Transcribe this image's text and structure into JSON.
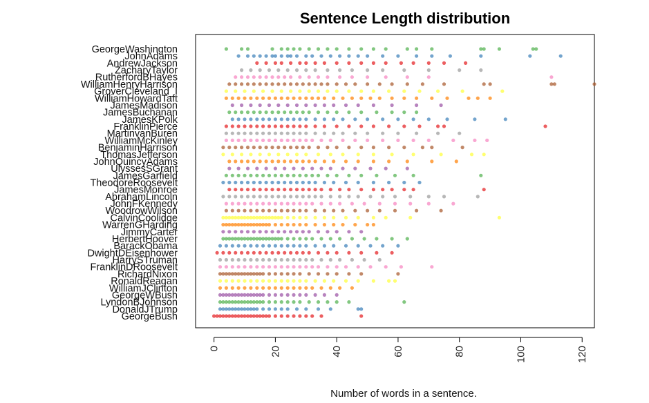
{
  "chart_data": {
    "type": "scatter",
    "title": "Sentence Length distribution",
    "xlabel": "Number of words in a sentence.",
    "ylabel": "",
    "xlim": [
      -6,
      124
    ],
    "xticks": [
      0,
      20,
      40,
      60,
      80,
      100,
      120
    ],
    "grid": false,
    "palette": [
      "#e41a1c",
      "#377eb8",
      "#4daf4a",
      "#984ea3",
      "#ff7f00",
      "#ffff33",
      "#a65628",
      "#f781bf",
      "#999999"
    ],
    "series": [
      {
        "name": "GeorgeWashington",
        "color": "#4daf4a",
        "values": [
          4,
          9,
          11,
          19,
          22,
          24,
          26,
          28,
          31,
          34,
          37,
          40,
          44,
          48,
          52,
          56,
          63,
          66,
          71,
          87,
          88,
          93,
          104,
          105
        ]
      },
      {
        "name": "JohnAdams",
        "color": "#377eb8",
        "values": [
          8,
          11,
          13,
          15,
          17,
          19,
          20,
          22,
          24,
          25,
          27,
          30,
          32,
          35,
          38,
          41,
          44,
          47,
          50,
          55,
          60,
          66,
          71,
          77,
          87,
          103,
          113
        ]
      },
      {
        "name": "AndrewJackson",
        "color": "#e41a1c",
        "values": [
          14,
          17,
          20,
          22,
          25,
          28,
          30,
          33,
          36,
          40,
          44,
          48,
          52,
          56,
          61,
          65,
          70,
          75,
          82
        ]
      },
      {
        "name": "ZacharyTaylor",
        "color": "#999999",
        "values": [
          9,
          12,
          15,
          18,
          21,
          24,
          27,
          30,
          33,
          37,
          41,
          45,
          50,
          55,
          62,
          70,
          80,
          87
        ]
      },
      {
        "name": "RutherfordBHayes",
        "color": "#f781bf",
        "values": [
          7,
          9,
          11,
          13,
          15,
          17,
          19,
          21,
          23,
          25,
          28,
          31,
          34,
          37,
          41,
          45,
          50,
          56,
          63,
          70,
          110
        ]
      },
      {
        "name": "WilliamHenryHarrison",
        "color": "#a65628",
        "values": [
          5,
          7,
          9,
          11,
          13,
          15,
          17,
          19,
          21,
          23,
          25,
          27,
          29,
          31,
          33,
          35,
          37,
          40,
          43,
          46,
          50,
          54,
          58,
          63,
          68,
          75,
          88,
          90,
          110,
          111,
          124
        ]
      },
      {
        "name": "GroverCleveland_I",
        "color": "#ffff33",
        "values": [
          4,
          7,
          10,
          13,
          16,
          19,
          22,
          25,
          28,
          31,
          34,
          37,
          40,
          44,
          48,
          52,
          57,
          62,
          67,
          73,
          81,
          94
        ]
      },
      {
        "name": "WilliamHowardTaft",
        "color": "#ff7f00",
        "values": [
          4,
          6,
          8,
          10,
          12,
          14,
          16,
          18,
          20,
          22,
          24,
          26,
          28,
          30,
          32,
          34,
          36,
          39,
          42,
          45,
          48,
          51,
          54,
          58,
          62,
          66,
          71,
          76,
          83,
          86,
          90
        ]
      },
      {
        "name": "JamesMadison",
        "color": "#984ea3",
        "values": [
          6,
          9,
          12,
          15,
          18,
          21,
          24,
          27,
          30,
          33,
          36,
          39,
          43,
          47,
          52,
          58,
          66,
          74
        ]
      },
      {
        "name": "JamesBuchanan",
        "color": "#4daf4a",
        "values": [
          5,
          7,
          9,
          11,
          13,
          15,
          17,
          19,
          21,
          23,
          25,
          27,
          29,
          31,
          34,
          37,
          40,
          44,
          48,
          53,
          58,
          62,
          66
        ]
      },
      {
        "name": "JamesKPolk",
        "color": "#377eb8",
        "values": [
          6,
          8,
          10,
          12,
          14,
          16,
          18,
          20,
          22,
          24,
          26,
          28,
          30,
          33,
          36,
          39,
          42,
          46,
          50,
          55,
          60,
          65,
          70,
          76,
          85,
          95
        ]
      },
      {
        "name": "FranklinPierce",
        "color": "#e41a1c",
        "values": [
          4,
          6,
          8,
          10,
          12,
          14,
          16,
          18,
          20,
          22,
          24,
          26,
          28,
          30,
          33,
          36,
          40,
          44,
          48,
          52,
          57,
          62,
          67,
          73,
          75,
          108
        ]
      },
      {
        "name": "MartinvanBuren",
        "color": "#999999",
        "values": [
          4,
          6,
          8,
          10,
          12,
          14,
          16,
          18,
          20,
          22,
          24,
          26,
          28,
          30,
          33,
          36,
          39,
          42,
          46,
          50,
          55,
          60,
          66,
          73,
          80
        ]
      },
      {
        "name": "WilliamMcKinley",
        "color": "#f781bf",
        "values": [
          4,
          6,
          8,
          10,
          12,
          14,
          16,
          18,
          20,
          22,
          24,
          26,
          28,
          30,
          32,
          35,
          38,
          42,
          46,
          50,
          55,
          60,
          65,
          70,
          78,
          85,
          89
        ]
      },
      {
        "name": "BenjaminHarrison",
        "color": "#a65628",
        "values": [
          3,
          5,
          7,
          9,
          11,
          13,
          15,
          17,
          19,
          21,
          23,
          25,
          27,
          29,
          31,
          34,
          37,
          40,
          44,
          48,
          52,
          57,
          62,
          68,
          71,
          81
        ]
      },
      {
        "name": "ThomasJefferson",
        "color": "#ffff33",
        "values": [
          3,
          6,
          9,
          12,
          15,
          18,
          21,
          24,
          27,
          30,
          34,
          38,
          42,
          47,
          52,
          58,
          65,
          74,
          84,
          88
        ]
      },
      {
        "name": "JohnQuincyAdams",
        "color": "#ff7f00",
        "values": [
          5,
          7,
          9,
          11,
          13,
          15,
          17,
          19,
          21,
          23,
          25,
          27,
          29,
          31,
          33,
          36,
          39,
          43,
          47,
          52,
          57,
          63,
          71,
          79
        ]
      },
      {
        "name": "UlyssesSGrant",
        "color": "#984ea3",
        "values": [
          5,
          8,
          11,
          14,
          17,
          20,
          23,
          26,
          29,
          32,
          35,
          38,
          42,
          46,
          51,
          56,
          63
        ]
      },
      {
        "name": "JamesGarfield",
        "color": "#4daf4a",
        "values": [
          4,
          6,
          8,
          10,
          12,
          14,
          16,
          18,
          20,
          22,
          24,
          26,
          28,
          30,
          32,
          34,
          37,
          40,
          44,
          48,
          53,
          59,
          65,
          87
        ]
      },
      {
        "name": "TheodoreRoosevelt",
        "color": "#377eb8",
        "values": [
          3,
          5,
          7,
          9,
          11,
          13,
          15,
          17,
          19,
          21,
          23,
          25,
          27,
          29,
          31,
          33,
          36,
          39,
          43,
          47,
          52,
          57,
          62,
          67
        ]
      },
      {
        "name": "JamesMonroe",
        "color": "#e41a1c",
        "values": [
          5,
          7,
          9,
          11,
          13,
          15,
          17,
          19,
          21,
          23,
          25,
          27,
          29,
          31,
          33,
          35,
          38,
          41,
          44,
          48,
          52,
          55,
          58,
          62,
          65,
          88
        ]
      },
      {
        "name": "AbrahamLincoln",
        "color": "#999999",
        "values": [
          3,
          5,
          7,
          9,
          11,
          13,
          15,
          17,
          19,
          21,
          23,
          25,
          27,
          29,
          31,
          33,
          35,
          38,
          41,
          44,
          47,
          51,
          55,
          59,
          64,
          70,
          75,
          86
        ]
      },
      {
        "name": "JohnFKennedy",
        "color": "#f781bf",
        "values": [
          4,
          6,
          8,
          10,
          12,
          14,
          16,
          18,
          20,
          22,
          24,
          26,
          28,
          30,
          32,
          35,
          38,
          41,
          45,
          49,
          54,
          59,
          64,
          70,
          78
        ]
      },
      {
        "name": "WoodrowWilson",
        "color": "#a65628",
        "values": [
          4,
          6,
          8,
          10,
          12,
          14,
          16,
          18,
          20,
          22,
          24,
          26,
          28,
          30,
          33,
          36,
          39,
          42,
          46,
          50,
          54,
          59,
          66,
          74
        ]
      },
      {
        "name": "CalvinCoolidge",
        "color": "#ffff33",
        "values": [
          3,
          4,
          5,
          6,
          7,
          8,
          9,
          10,
          11,
          12,
          13,
          14,
          15,
          16,
          17,
          18,
          19,
          20,
          21,
          22,
          24,
          26,
          28,
          30,
          33,
          36,
          39,
          43,
          47,
          52,
          56,
          64,
          93
        ]
      },
      {
        "name": "WarrenGHarding",
        "color": "#ff7f00",
        "values": [
          3,
          4,
          5,
          6,
          7,
          8,
          9,
          10,
          11,
          12,
          13,
          14,
          15,
          16,
          17,
          18,
          20,
          22,
          24,
          26,
          28,
          30,
          33,
          36,
          39,
          42,
          46,
          50,
          52
        ]
      },
      {
        "name": "JimmyCarter",
        "color": "#984ea3",
        "values": [
          3,
          5,
          7,
          9,
          11,
          13,
          15,
          17,
          19,
          21,
          23,
          25,
          27,
          29,
          31,
          34,
          37,
          40,
          44,
          48
        ]
      },
      {
        "name": "HerbertHoover",
        "color": "#4daf4a",
        "values": [
          3,
          4,
          5,
          6,
          7,
          8,
          9,
          10,
          11,
          12,
          13,
          14,
          15,
          16,
          17,
          18,
          19,
          20,
          21,
          22,
          24,
          26,
          28,
          30,
          32,
          35,
          38,
          41,
          45,
          49,
          53,
          58,
          63
        ]
      },
      {
        "name": "BarackObama",
        "color": "#377eb8",
        "values": [
          2,
          4,
          6,
          8,
          10,
          12,
          14,
          16,
          18,
          20,
          22,
          24,
          26,
          28,
          30,
          33,
          36,
          39,
          43,
          47,
          51,
          55,
          60
        ]
      },
      {
        "name": "DwightDEisenhower",
        "color": "#e41a1c",
        "values": [
          1,
          3,
          5,
          7,
          9,
          11,
          13,
          15,
          17,
          19,
          21,
          23,
          25,
          27,
          29,
          31,
          34,
          37,
          40,
          44,
          48,
          53,
          58
        ]
      },
      {
        "name": "HarrySTruman",
        "color": "#999999",
        "values": [
          2,
          4,
          6,
          8,
          10,
          12,
          14,
          16,
          18,
          20,
          22,
          24,
          26,
          28,
          30,
          32,
          35,
          38,
          41,
          45,
          49,
          54
        ]
      },
      {
        "name": "FranklinDRoosevelt",
        "color": "#f781bf",
        "values": [
          2,
          4,
          6,
          8,
          10,
          12,
          14,
          16,
          18,
          20,
          22,
          24,
          26,
          28,
          30,
          32,
          34,
          37,
          40,
          43,
          47,
          51,
          56,
          61,
          71
        ]
      },
      {
        "name": "RichardNixon",
        "color": "#a65628",
        "values": [
          2,
          3,
          4,
          5,
          6,
          7,
          8,
          9,
          10,
          11,
          12,
          13,
          14,
          15,
          16,
          18,
          20,
          22,
          24,
          26,
          28,
          31,
          34,
          37,
          40,
          44,
          48,
          60
        ]
      },
      {
        "name": "RonaldReagan",
        "color": "#ffff33",
        "values": [
          2,
          4,
          6,
          8,
          10,
          12,
          14,
          16,
          18,
          20,
          22,
          24,
          26,
          28,
          30,
          33,
          36,
          39,
          43,
          47,
          52,
          57,
          59
        ]
      },
      {
        "name": "WilliamJClinton",
        "color": "#ff7f00",
        "values": [
          2,
          4,
          6,
          8,
          10,
          12,
          14,
          16,
          18,
          20,
          22,
          24,
          26,
          28,
          30,
          32,
          35,
          38,
          41,
          45
        ]
      },
      {
        "name": "GeorgeWBush",
        "color": "#984ea3",
        "values": [
          2,
          3,
          4,
          5,
          6,
          7,
          8,
          9,
          10,
          11,
          12,
          13,
          14,
          15,
          16,
          18,
          20,
          22,
          24,
          26,
          28,
          30,
          33,
          36,
          40
        ]
      },
      {
        "name": "LyndonBJohnson",
        "color": "#4daf4a",
        "values": [
          2,
          3,
          4,
          5,
          6,
          7,
          8,
          9,
          10,
          11,
          12,
          13,
          14,
          15,
          16,
          18,
          20,
          22,
          24,
          26,
          28,
          31,
          34,
          37,
          40,
          44,
          62
        ]
      },
      {
        "name": "DonaldJTrump",
        "color": "#377eb8",
        "values": [
          2,
          3,
          4,
          5,
          6,
          7,
          8,
          9,
          10,
          11,
          12,
          13,
          14,
          16,
          18,
          20,
          22,
          24,
          27,
          30,
          34,
          38,
          47,
          48
        ]
      },
      {
        "name": "GeorgeBush",
        "color": "#e41a1c",
        "values": [
          0,
          1,
          2,
          3,
          4,
          5,
          6,
          7,
          8,
          9,
          10,
          11,
          12,
          13,
          14,
          15,
          16,
          17,
          18,
          20,
          22,
          24,
          26,
          28,
          30,
          32,
          35,
          48
        ]
      }
    ]
  }
}
